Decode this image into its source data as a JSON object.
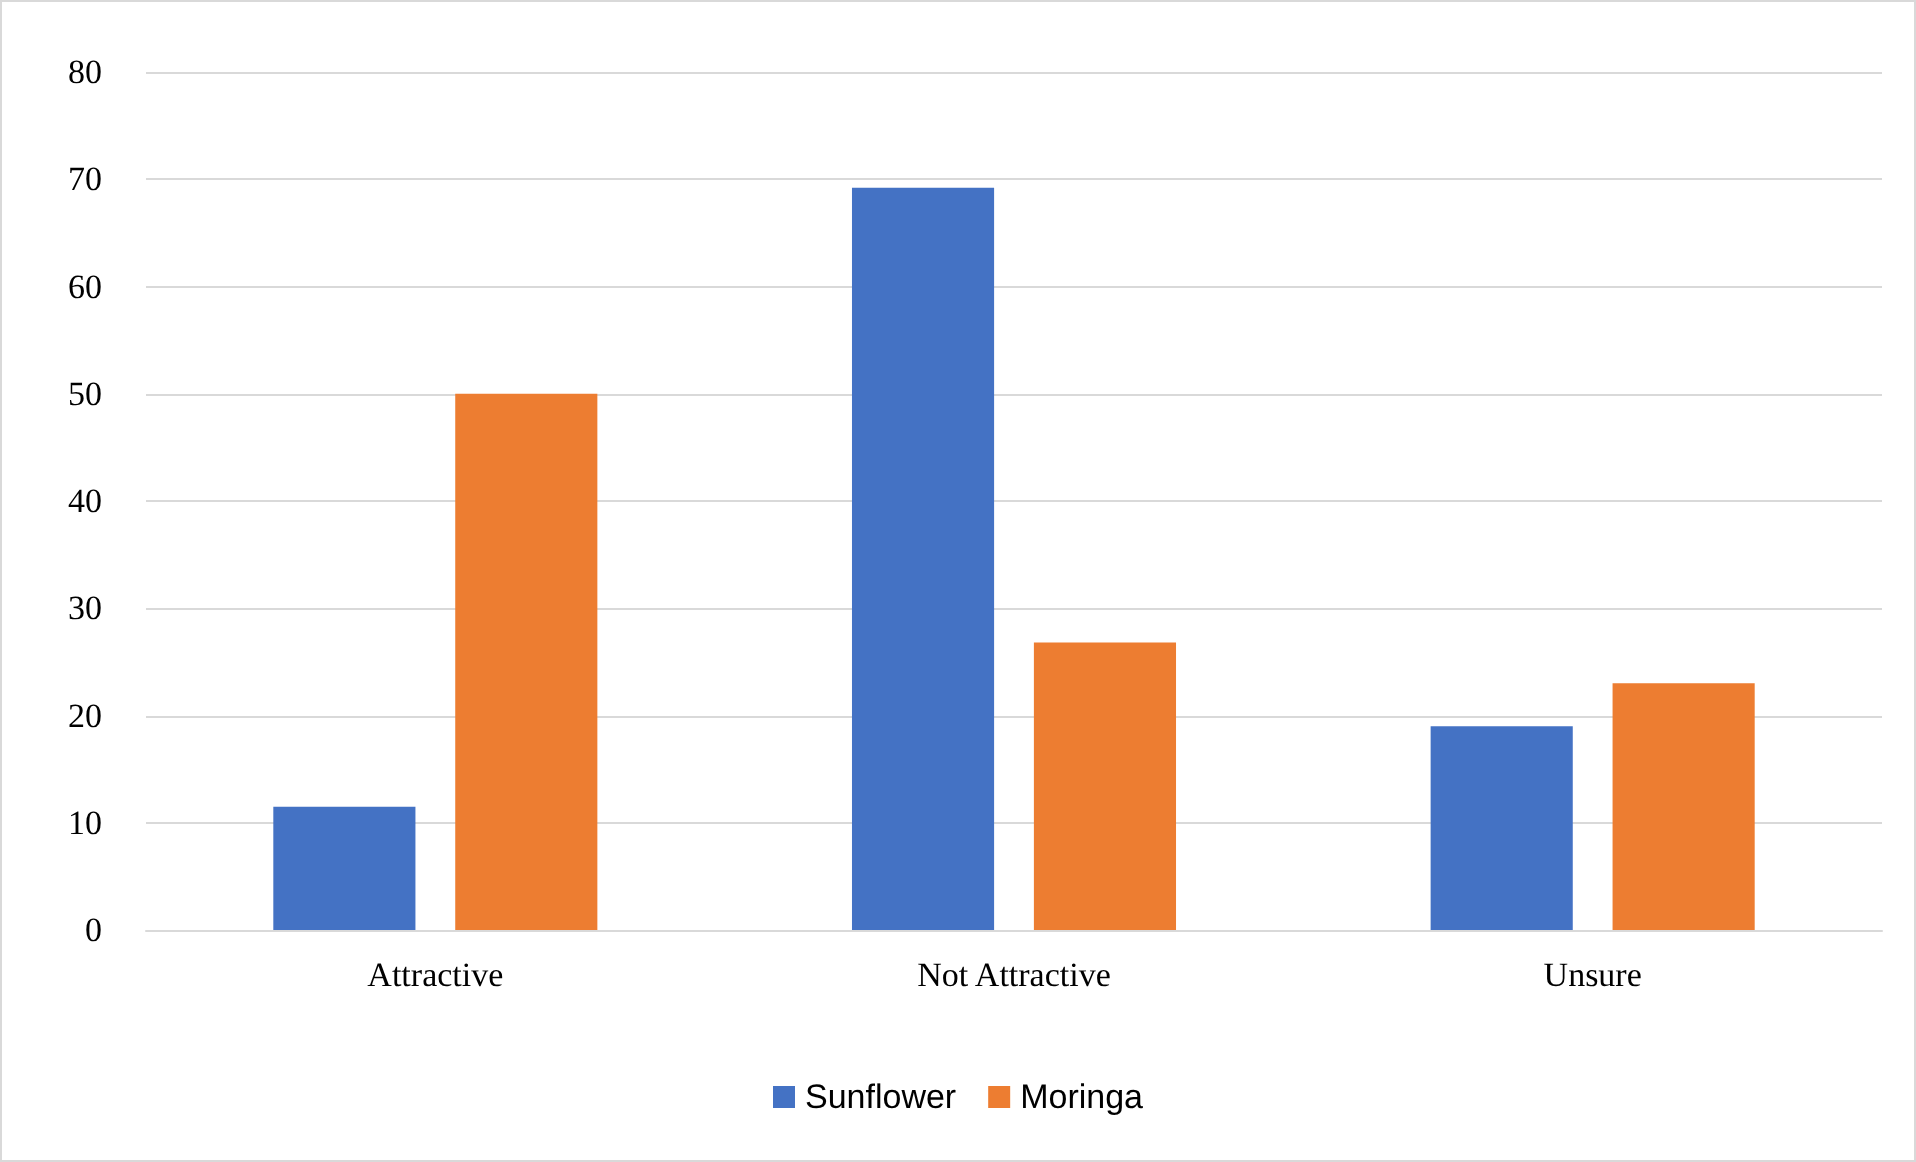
{
  "chart_data": {
    "type": "bar",
    "categories": [
      "Attractive",
      "Not Attractive",
      "Unsure"
    ],
    "series": [
      {
        "name": "Sunflower",
        "color": "#4472c4",
        "values": [
          11.5,
          69.2,
          19
        ]
      },
      {
        "name": "Moringa",
        "color": "#ed7d31",
        "values": [
          50,
          26.8,
          23
        ]
      }
    ],
    "ylim": [
      0,
      80
    ],
    "yticks": [
      0,
      10,
      20,
      30,
      40,
      50,
      60,
      70,
      80
    ],
    "grid": "y",
    "legend": "bottom"
  }
}
